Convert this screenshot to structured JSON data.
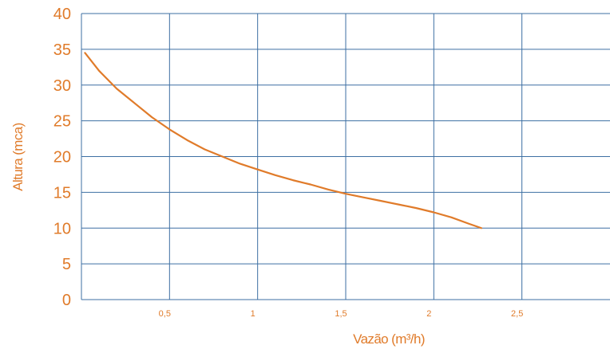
{
  "chart_data": {
    "type": "line",
    "title": "",
    "xlabel": "Vazão (m³/h)",
    "ylabel": "Altura (mca)",
    "xlim": [
      0,
      3.0
    ],
    "ylim": [
      0,
      40
    ],
    "grid": true,
    "x_ticks": [
      {
        "value": 0.5,
        "label": "0,5"
      },
      {
        "value": 1,
        "label": "1"
      },
      {
        "value": 1.5,
        "label": "1,5"
      },
      {
        "value": 2,
        "label": "2"
      },
      {
        "value": 2.5,
        "label": "2,5"
      }
    ],
    "y_ticks": [
      {
        "value": 0,
        "label": "0"
      },
      {
        "value": 5,
        "label": "5"
      },
      {
        "value": 10,
        "label": "10"
      },
      {
        "value": 15,
        "label": "15"
      },
      {
        "value": 20,
        "label": "20"
      },
      {
        "value": 25,
        "label": "25"
      },
      {
        "value": 30,
        "label": "30"
      },
      {
        "value": 35,
        "label": "35"
      },
      {
        "value": 40,
        "label": "40"
      }
    ],
    "series": [
      {
        "x": [
          0.02,
          0.1,
          0.2,
          0.3,
          0.4,
          0.5,
          0.6,
          0.7,
          0.8,
          0.9,
          1.0,
          1.1,
          1.2,
          1.3,
          1.4,
          1.5,
          1.6,
          1.7,
          1.8,
          1.9,
          2.0,
          2.1,
          2.2,
          2.27
        ],
        "y": [
          34.5,
          32.0,
          29.5,
          27.5,
          25.5,
          23.8,
          22.3,
          21.0,
          20.0,
          19.0,
          18.2,
          17.4,
          16.7,
          16.1,
          15.4,
          14.8,
          14.3,
          13.8,
          13.3,
          12.8,
          12.2,
          11.5,
          10.6,
          10.0
        ]
      }
    ],
    "colors": {
      "line": "#e07b2a",
      "grid": "#3d6fa3",
      "text": "#e07b2a"
    }
  }
}
